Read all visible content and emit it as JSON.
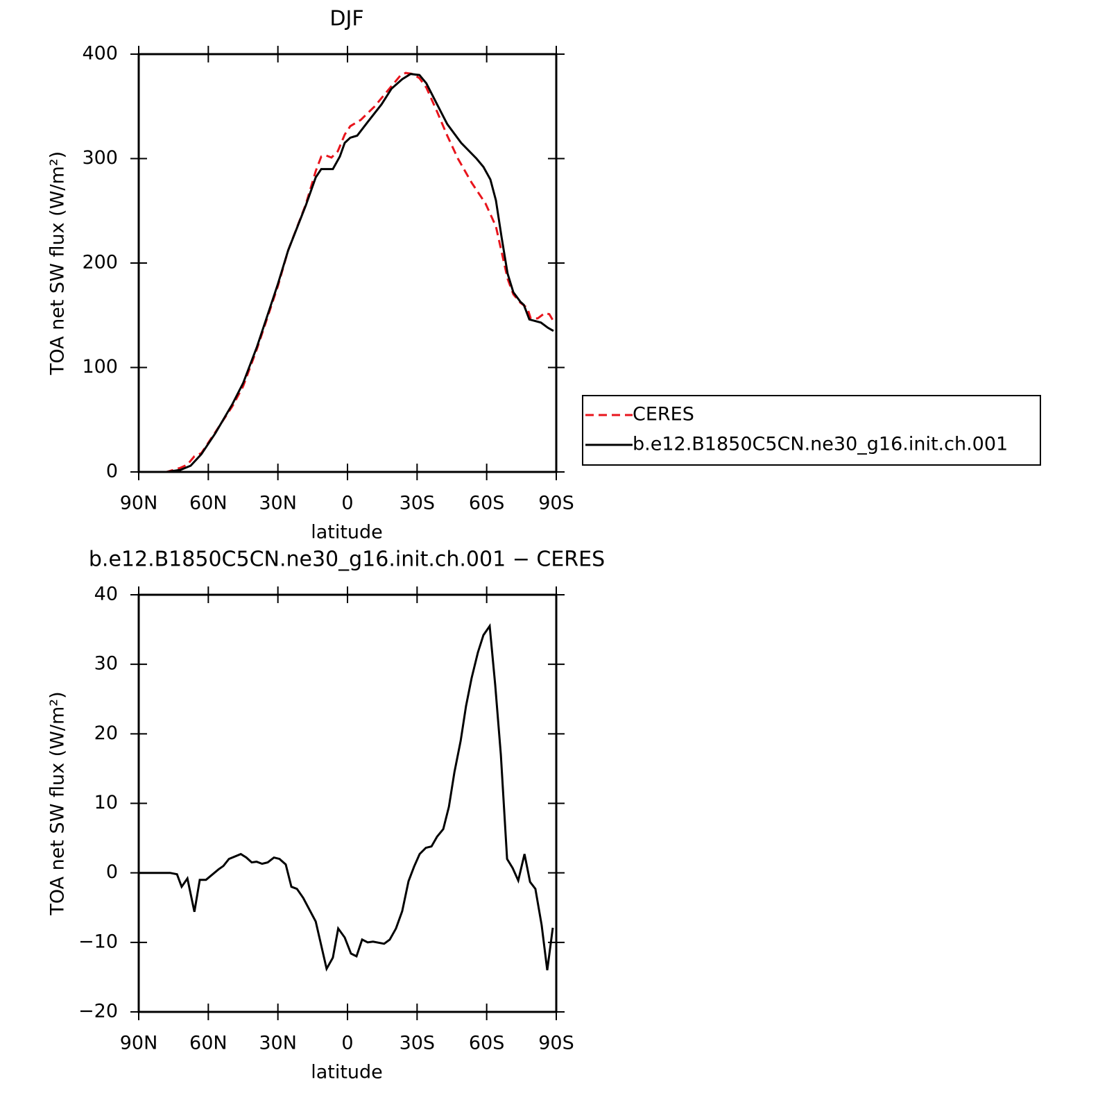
{
  "chart_data": [
    {
      "type": "line",
      "title": "DJF",
      "xlabel": "latitude",
      "ylabel": "TOA net SW flux (W/m²)",
      "xlim": [
        90,
        -90
      ],
      "xticks": [
        {
          "value": 90,
          "label": "90N"
        },
        {
          "value": 60,
          "label": "60N"
        },
        {
          "value": 30,
          "label": "30N"
        },
        0,
        {
          "value": -30,
          "label": "30S"
        },
        {
          "value": -60,
          "label": "60S"
        },
        {
          "value": -90,
          "label": "90S"
        }
      ],
      "ylim": [
        0,
        400
      ],
      "yticks": [
        0,
        100,
        200,
        300,
        400
      ],
      "legend": "right",
      "series": [
        {
          "name": "CERES",
          "color": "#e8141c",
          "dashed": true,
          "x": [
            90,
            78,
            72,
            69,
            66,
            63,
            57,
            49.6,
            45,
            39,
            30,
            25.6,
            18,
            13.7,
            11.3,
            9.3,
            6.9,
            4.2,
            1.2,
            -1.2,
            -5.7,
            -11.7,
            -17.7,
            -23,
            -25.1,
            -28.1,
            -31,
            -34,
            -38.6,
            -43,
            -47.6,
            -53.5,
            -59.5,
            -64,
            -67,
            -69,
            -71.5,
            -74.5,
            -77.5,
            -79,
            -82,
            -85,
            -87,
            -89.4
          ],
          "values": [
            0,
            0,
            4,
            7,
            15,
            18,
            38,
            63,
            82,
            118,
            178,
            212,
            256,
            288,
            302,
            303,
            301,
            307,
            323,
            331,
            337,
            350,
            366,
            380,
            382,
            381,
            377,
            368,
            345,
            322,
            300,
            277,
            257,
            235,
            205,
            185,
            170,
            162,
            157,
            147,
            147,
            152,
            151,
            142
          ]
        },
        {
          "name": "b.e12.B1850C5CN.ne30_g16.init.ch.001",
          "color": "#000000",
          "dashed": false,
          "x": [
            90,
            78,
            72,
            67.6,
            63,
            57,
            49.6,
            45,
            39,
            30,
            25.6,
            18,
            13.7,
            11.3,
            6.3,
            3.3,
            1.2,
            -1.2,
            -4.2,
            -8.7,
            -14.7,
            -19,
            -23.6,
            -27.2,
            -31,
            -34,
            -38.6,
            -43,
            -49,
            -55.6,
            -58.6,
            -61.6,
            -64,
            -66.4,
            -69,
            -71.5,
            -74.5,
            -76,
            -78.4,
            -83.4,
            -86.4,
            -88.8
          ],
          "values": [
            0,
            0,
            2,
            6,
            17,
            37,
            65,
            85,
            120,
            180,
            212,
            255,
            282,
            290,
            290,
            302,
            315,
            320,
            322,
            335,
            352,
            367,
            376,
            381,
            380,
            372,
            352,
            333,
            315,
            300,
            292,
            280,
            260,
            225,
            190,
            172,
            163,
            160,
            146,
            143,
            138,
            135
          ]
        }
      ]
    },
    {
      "type": "line",
      "title": "b.e12.B1850C5CN.ne30_g16.init.ch.001 − CERES",
      "xlabel": "latitude",
      "ylabel": "TOA net SW flux (W/m²)",
      "xlim": [
        90,
        -90
      ],
      "xticks": [
        {
          "value": 90,
          "label": "90N"
        },
        {
          "value": 60,
          "label": "60N"
        },
        {
          "value": 30,
          "label": "30N"
        },
        0,
        {
          "value": -30,
          "label": "30S"
        },
        {
          "value": -60,
          "label": "60S"
        },
        {
          "value": -90,
          "label": "90S"
        }
      ],
      "ylim": [
        -20,
        40
      ],
      "yticks": [
        {
          "value": -20,
          "label": "−20"
        },
        {
          "value": -10,
          "label": "−10"
        },
        0,
        10,
        20,
        30,
        40
      ],
      "color": "#000000",
      "x": [
        90,
        76.5,
        73.5,
        71.5,
        69,
        66,
        63.7,
        61,
        55.6,
        53.5,
        51.1,
        46,
        43.6,
        41.3,
        39.2,
        36.8,
        34.4,
        31.7,
        29.3,
        26.6,
        24.2,
        21.8,
        19.1,
        13.7,
        9,
        6.3,
        4,
        1.2,
        -1.5,
        -3.9,
        -6.3,
        -8.7,
        -11,
        -15.8,
        -18.2,
        -20.9,
        -23.6,
        -26.3,
        -28.7,
        -31.1,
        -33.8,
        -36.2,
        -38.6,
        -41.3,
        -43.7,
        -46.1,
        -48.8,
        -51.1,
        -53.5,
        -56.2,
        -58.6,
        -61.3,
        -63.7,
        -66.1,
        -68.8,
        -71.2,
        -73.6,
        -76.3,
        -78.7,
        -81,
        -83.7,
        -86.1,
        -88.5
      ],
      "values": [
        0,
        0,
        -0.2,
        -2,
        -0.8,
        -5.6,
        -1,
        -1,
        0.5,
        1,
        2,
        2.7,
        2.2,
        1.5,
        1.6,
        1.3,
        1.5,
        2.2,
        2,
        1.2,
        -2,
        -2.3,
        -3.6,
        -7,
        -13.8,
        -12.2,
        -8,
        -9.3,
        -11.6,
        -12,
        -9.6,
        -10,
        -9.9,
        -10.2,
        -9.6,
        -8,
        -5.5,
        -1.2,
        0.9,
        2.7,
        3.6,
        3.8,
        5.2,
        6.3,
        9.5,
        14.5,
        19,
        24,
        28,
        31.7,
        34.2,
        35.5,
        27,
        17,
        2,
        0.7,
        -1.1,
        2.7,
        -1.3,
        -2.3,
        -7.5,
        -14,
        -7.9
      ]
    }
  ]
}
